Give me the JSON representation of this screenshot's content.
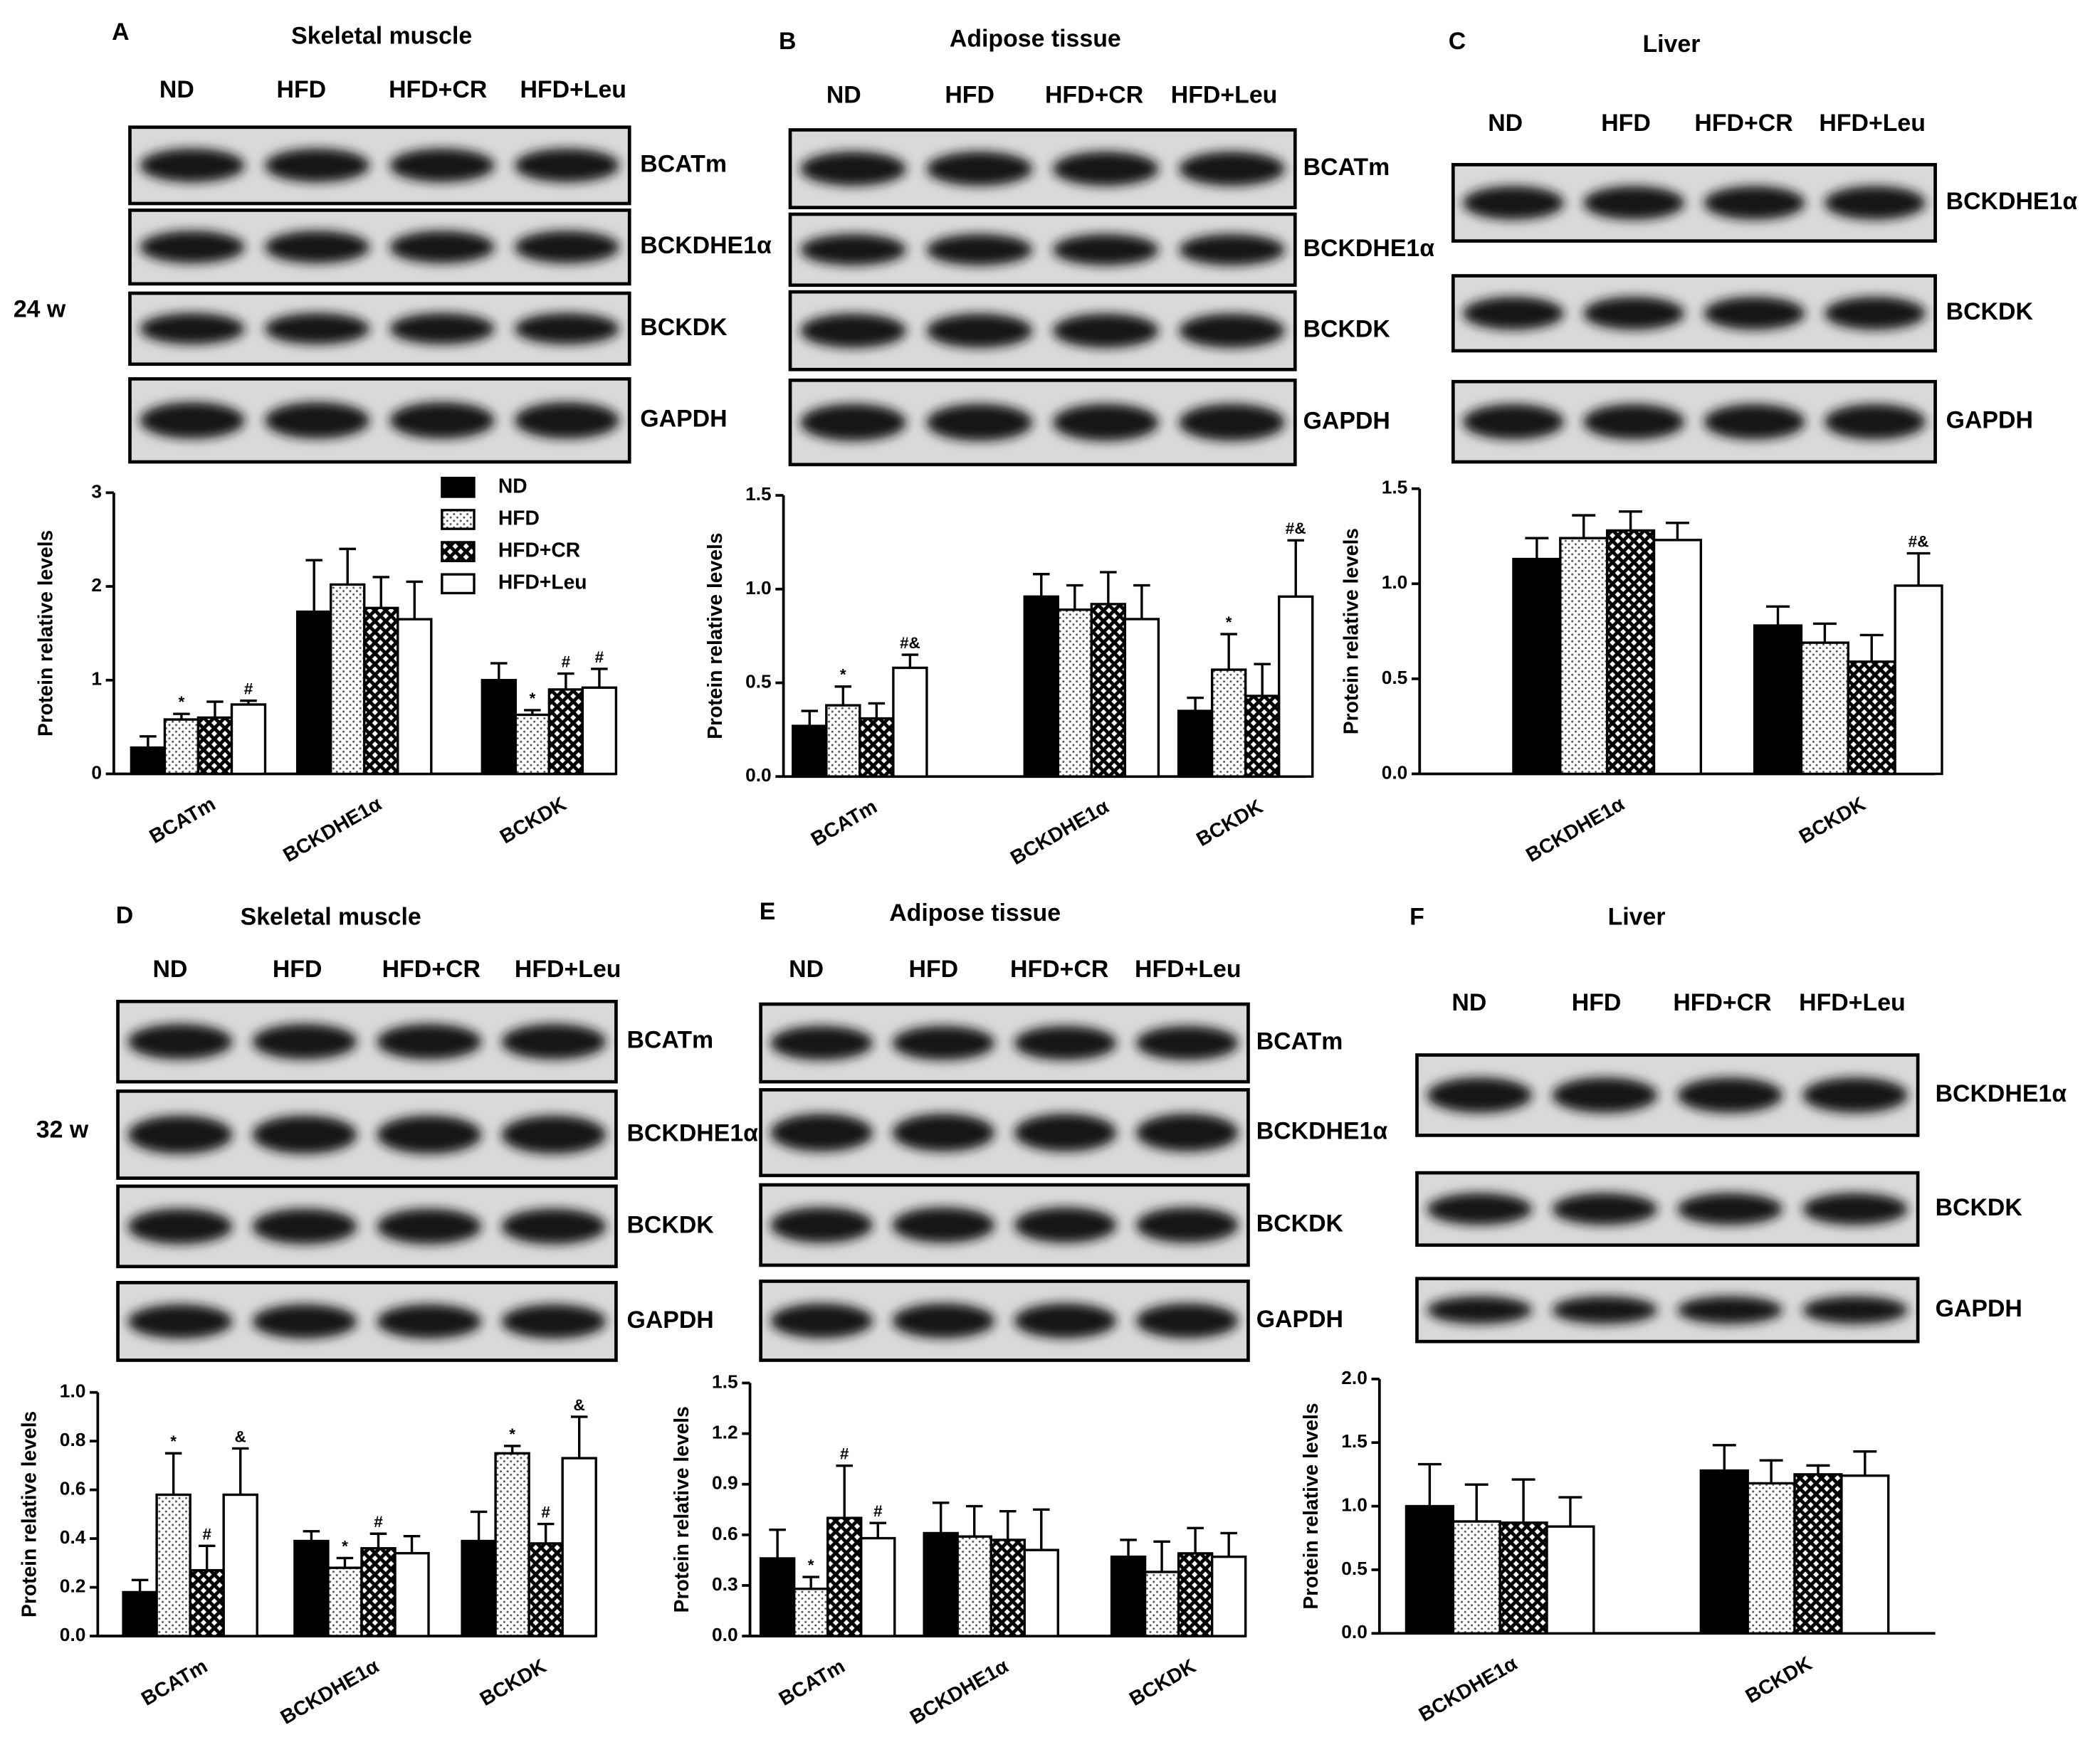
{
  "chart_data": [
    {
      "type": "bar",
      "letter": "A",
      "title": "Skeletal muscle",
      "timepoint": "24 w",
      "lanes": [
        "ND",
        "HFD",
        "HFD+CR",
        "HFD+Leu"
      ],
      "blot_rows": [
        "BCATm",
        "BCKDHE1α",
        "BCKDK",
        "GAPDH"
      ],
      "ylabel": "Protein relative levels",
      "categories": [
        "BCATm",
        "BCKDHE1α",
        "BCKDK"
      ],
      "ylim": [
        0,
        3
      ],
      "yticks": [
        0,
        1,
        2,
        3
      ],
      "legend": true,
      "series": [
        {
          "name": "ND",
          "pattern": "solid",
          "values": [
            0.28,
            1.73,
            1.0
          ],
          "errors": [
            0.12,
            0.55,
            0.18
          ],
          "annotations": [
            null,
            null,
            null
          ]
        },
        {
          "name": "HFD",
          "pattern": "dots",
          "values": [
            0.58,
            2.02,
            0.63
          ],
          "errors": [
            0.06,
            0.38,
            0.05
          ],
          "annotations": [
            "*",
            null,
            "*"
          ]
        },
        {
          "name": "HFD+CR",
          "pattern": "crosshatch",
          "values": [
            0.6,
            1.77,
            0.9
          ],
          "errors": [
            0.17,
            0.33,
            0.17
          ],
          "annotations": [
            null,
            null,
            "#"
          ]
        },
        {
          "name": "HFD+Leu",
          "pattern": "none",
          "values": [
            0.74,
            1.65,
            0.92
          ],
          "errors": [
            0.04,
            0.4,
            0.2
          ],
          "annotations": [
            "#",
            null,
            "#"
          ]
        }
      ]
    },
    {
      "type": "bar",
      "letter": "B",
      "title": "Adipose tissue",
      "lanes": [
        "ND",
        "HFD",
        "HFD+CR",
        "HFD+Leu"
      ],
      "blot_rows": [
        "BCATm",
        "BCKDHE1α",
        "BCKDK",
        "GAPDH"
      ],
      "ylabel": "Protein relative levels",
      "categories": [
        "BCATm",
        "BCKDHE1α",
        "BCKDK"
      ],
      "ylim": [
        0,
        1.5
      ],
      "yticks": [
        {
          "value": 0,
          "label": "0.0"
        },
        0.5,
        {
          "value": 1,
          "label": "1.0"
        },
        1.5
      ],
      "series": [
        {
          "pattern": "solid",
          "values": [
            0.27,
            0.96,
            0.35
          ],
          "errors": [
            0.08,
            0.12,
            0.07
          ],
          "annotations": [
            null,
            null,
            null
          ]
        },
        {
          "pattern": "dots",
          "values": [
            0.38,
            0.89,
            0.57
          ],
          "errors": [
            0.1,
            0.13,
            0.19
          ],
          "annotations": [
            "*",
            null,
            "*"
          ]
        },
        {
          "pattern": "crosshatch",
          "values": [
            0.31,
            0.92,
            0.43
          ],
          "errors": [
            0.08,
            0.17,
            0.17
          ],
          "annotations": [
            null,
            null,
            null
          ]
        },
        {
          "pattern": "none",
          "values": [
            0.58,
            0.84,
            0.96
          ],
          "errors": [
            0.07,
            0.18,
            0.3
          ],
          "annotations": [
            "#&",
            null,
            "#&"
          ]
        }
      ]
    },
    {
      "type": "bar",
      "letter": "C",
      "title": "Liver",
      "lanes": [
        "ND",
        "HFD",
        "HFD+CR",
        "HFD+Leu"
      ],
      "blot_rows": [
        "BCKDHE1α",
        "BCKDK",
        "GAPDH"
      ],
      "ylabel": "Protein relative levels",
      "categories": [
        "BCKDHE1α",
        "BCKDK"
      ],
      "ylim": [
        0,
        1.5
      ],
      "yticks": [
        {
          "value": 0,
          "label": "0.0"
        },
        0.5,
        {
          "value": 1,
          "label": "1.0"
        },
        1.5
      ],
      "series": [
        {
          "pattern": "solid",
          "values": [
            1.13,
            0.78
          ],
          "errors": [
            0.11,
            0.1
          ],
          "annotations": [
            null,
            null
          ]
        },
        {
          "pattern": "dots",
          "values": [
            1.24,
            0.69
          ],
          "errors": [
            0.12,
            0.1
          ],
          "annotations": [
            null,
            null
          ]
        },
        {
          "pattern": "crosshatch",
          "values": [
            1.28,
            0.59
          ],
          "errors": [
            0.1,
            0.14
          ],
          "annotations": [
            null,
            null
          ]
        },
        {
          "pattern": "none",
          "values": [
            1.23,
            0.99
          ],
          "errors": [
            0.09,
            0.17
          ],
          "annotations": [
            null,
            "#&"
          ]
        }
      ]
    },
    {
      "type": "bar",
      "letter": "D",
      "title": "Skeletal muscle",
      "timepoint": "32 w",
      "lanes": [
        "ND",
        "HFD",
        "HFD+CR",
        "HFD+Leu"
      ],
      "blot_rows": [
        "BCATm",
        "BCKDHE1α",
        "BCKDK",
        "GAPDH"
      ],
      "ylabel": "Protein relative levels",
      "categories": [
        "BCATm",
        "BCKDHE1α",
        "BCKDK"
      ],
      "ylim": [
        0,
        1
      ],
      "yticks": [
        {
          "value": 0,
          "label": "0.0"
        },
        0.2,
        0.4,
        0.6,
        0.8,
        {
          "value": 1,
          "label": "1.0"
        }
      ],
      "series": [
        {
          "pattern": "solid",
          "values": [
            0.18,
            0.39,
            0.39
          ],
          "errors": [
            0.05,
            0.04,
            0.12
          ],
          "annotations": [
            null,
            null,
            null
          ]
        },
        {
          "pattern": "dots",
          "values": [
            0.58,
            0.28,
            0.75
          ],
          "errors": [
            0.17,
            0.04,
            0.03
          ],
          "annotations": [
            "*",
            "*",
            "*"
          ]
        },
        {
          "pattern": "crosshatch",
          "values": [
            0.27,
            0.36,
            0.38
          ],
          "errors": [
            0.1,
            0.06,
            0.08
          ],
          "annotations": [
            "#",
            "#",
            "#"
          ]
        },
        {
          "pattern": "none",
          "values": [
            0.58,
            0.34,
            0.73
          ],
          "errors": [
            0.19,
            0.07,
            0.17
          ],
          "annotations": [
            "&",
            null,
            "&"
          ]
        }
      ]
    },
    {
      "type": "bar",
      "letter": "E",
      "title": "Adipose tissue",
      "lanes": [
        "ND",
        "HFD",
        "HFD+CR",
        "HFD+Leu"
      ],
      "blot_rows": [
        "BCATm",
        "BCKDHE1α",
        "BCKDK",
        "GAPDH"
      ],
      "ylabel": "Protein relative levels",
      "categories": [
        "BCATm",
        "BCKDHE1α",
        "BCKDK"
      ],
      "ylim": [
        0,
        1.5
      ],
      "yticks": [
        {
          "value": 0,
          "label": "0.0"
        },
        0.3,
        0.6,
        0.9,
        1.2,
        1.5
      ],
      "series": [
        {
          "pattern": "solid",
          "values": [
            0.46,
            0.61,
            0.47
          ],
          "errors": [
            0.17,
            0.18,
            0.1
          ],
          "annotations": [
            null,
            null,
            null
          ]
        },
        {
          "pattern": "dots",
          "values": [
            0.28,
            0.59,
            0.38
          ],
          "errors": [
            0.07,
            0.18,
            0.18
          ],
          "annotations": [
            "*",
            null,
            null
          ]
        },
        {
          "pattern": "crosshatch",
          "values": [
            0.7,
            0.57,
            0.49
          ],
          "errors": [
            0.31,
            0.17,
            0.15
          ],
          "annotations": [
            "#",
            null,
            null
          ]
        },
        {
          "pattern": "none",
          "values": [
            0.58,
            0.51,
            0.47
          ],
          "errors": [
            0.09,
            0.24,
            0.14
          ],
          "annotations": [
            "#",
            null,
            null
          ]
        }
      ]
    },
    {
      "type": "bar",
      "letter": "F",
      "title": "Liver",
      "lanes": [
        "ND",
        "HFD",
        "HFD+CR",
        "HFD+Leu"
      ],
      "blot_rows": [
        "BCKDHE1α",
        "BCKDK",
        "GAPDH"
      ],
      "ylabel": "Protein relative levels",
      "categories": [
        "BCKDHE1α",
        "BCKDK"
      ],
      "ylim": [
        0,
        2
      ],
      "yticks": [
        {
          "value": 0,
          "label": "0.0"
        },
        0.5,
        {
          "value": 1,
          "label": "1.0"
        },
        1.5,
        {
          "value": 2,
          "label": "2.0"
        }
      ],
      "series": [
        {
          "pattern": "solid",
          "values": [
            1.0,
            1.28
          ],
          "errors": [
            0.33,
            0.2
          ],
          "annotations": [
            null,
            null
          ]
        },
        {
          "pattern": "dots",
          "values": [
            0.88,
            1.18
          ],
          "errors": [
            0.29,
            0.18
          ],
          "annotations": [
            null,
            null
          ]
        },
        {
          "pattern": "crosshatch",
          "values": [
            0.87,
            1.25
          ],
          "errors": [
            0.34,
            0.07
          ],
          "annotations": [
            null,
            null
          ]
        },
        {
          "pattern": "none",
          "values": [
            0.84,
            1.24
          ],
          "errors": [
            0.23,
            0.19
          ],
          "annotations": [
            null,
            null
          ]
        }
      ]
    }
  ]
}
